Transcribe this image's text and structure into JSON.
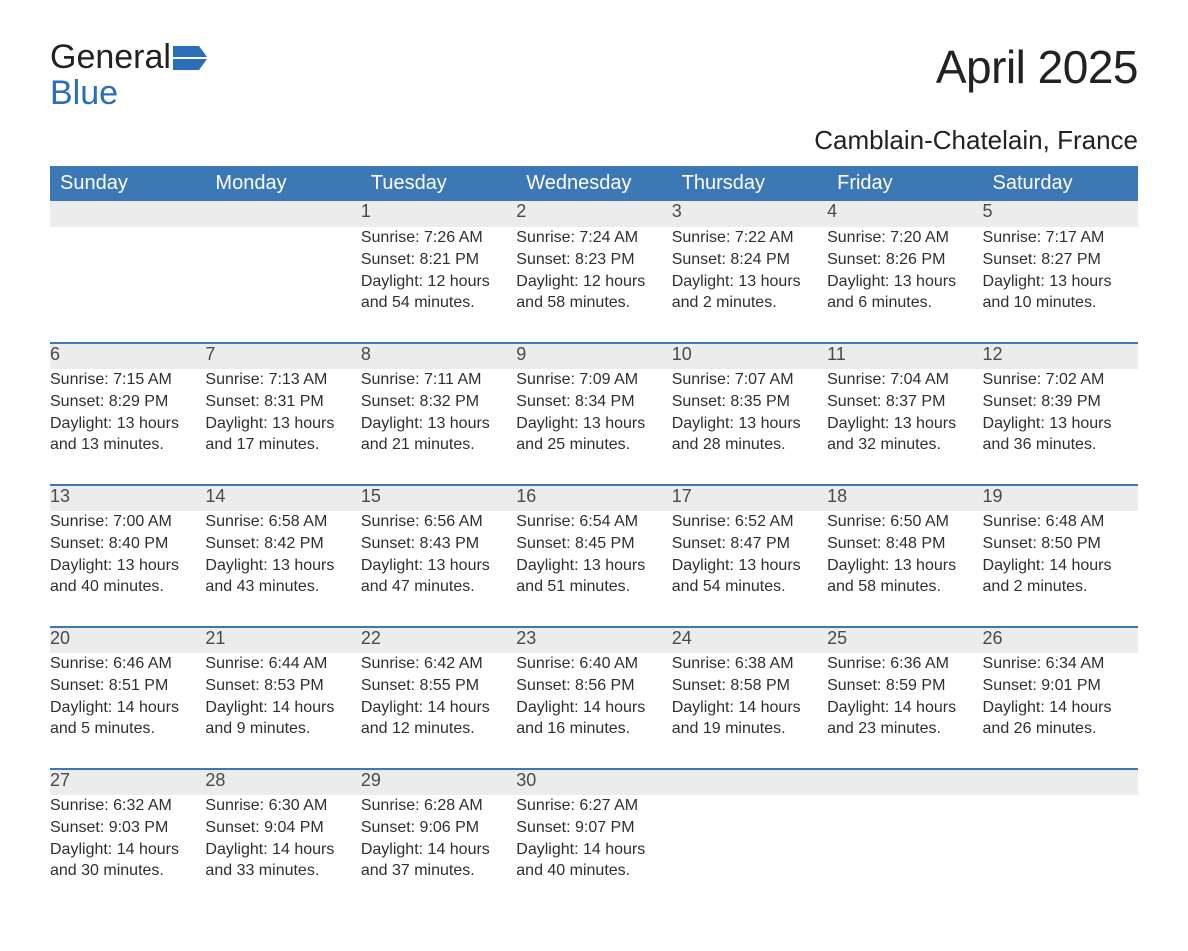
{
  "logo": {
    "word1": "General",
    "word2": "Blue",
    "flag_color": "#2a6db8"
  },
  "title": "April 2025",
  "location": "Camblain-Chatelain, France",
  "colors": {
    "header_bg": "#3c78b5",
    "header_text": "#ffffff",
    "daynum_bg": "#ececec",
    "daynum_text": "#4a4a4a",
    "body_text": "#2f2f2f",
    "rule": "#3c78b5"
  },
  "typography": {
    "title_fontsize": 46,
    "location_fontsize": 26,
    "header_fontsize": 20,
    "daynum_fontsize": 18,
    "cell_fontsize": 16
  },
  "calendar": {
    "type": "table",
    "columns": [
      "Sunday",
      "Monday",
      "Tuesday",
      "Wednesday",
      "Thursday",
      "Friday",
      "Saturday"
    ],
    "weeks": [
      [
        null,
        null,
        {
          "day": "1",
          "sunrise": "Sunrise: 7:26 AM",
          "sunset": "Sunset: 8:21 PM",
          "daylight1": "Daylight: 12 hours",
          "daylight2": "and 54 minutes."
        },
        {
          "day": "2",
          "sunrise": "Sunrise: 7:24 AM",
          "sunset": "Sunset: 8:23 PM",
          "daylight1": "Daylight: 12 hours",
          "daylight2": "and 58 minutes."
        },
        {
          "day": "3",
          "sunrise": "Sunrise: 7:22 AM",
          "sunset": "Sunset: 8:24 PM",
          "daylight1": "Daylight: 13 hours",
          "daylight2": "and 2 minutes."
        },
        {
          "day": "4",
          "sunrise": "Sunrise: 7:20 AM",
          "sunset": "Sunset: 8:26 PM",
          "daylight1": "Daylight: 13 hours",
          "daylight2": "and 6 minutes."
        },
        {
          "day": "5",
          "sunrise": "Sunrise: 7:17 AM",
          "sunset": "Sunset: 8:27 PM",
          "daylight1": "Daylight: 13 hours",
          "daylight2": "and 10 minutes."
        }
      ],
      [
        {
          "day": "6",
          "sunrise": "Sunrise: 7:15 AM",
          "sunset": "Sunset: 8:29 PM",
          "daylight1": "Daylight: 13 hours",
          "daylight2": "and 13 minutes."
        },
        {
          "day": "7",
          "sunrise": "Sunrise: 7:13 AM",
          "sunset": "Sunset: 8:31 PM",
          "daylight1": "Daylight: 13 hours",
          "daylight2": "and 17 minutes."
        },
        {
          "day": "8",
          "sunrise": "Sunrise: 7:11 AM",
          "sunset": "Sunset: 8:32 PM",
          "daylight1": "Daylight: 13 hours",
          "daylight2": "and 21 minutes."
        },
        {
          "day": "9",
          "sunrise": "Sunrise: 7:09 AM",
          "sunset": "Sunset: 8:34 PM",
          "daylight1": "Daylight: 13 hours",
          "daylight2": "and 25 minutes."
        },
        {
          "day": "10",
          "sunrise": "Sunrise: 7:07 AM",
          "sunset": "Sunset: 8:35 PM",
          "daylight1": "Daylight: 13 hours",
          "daylight2": "and 28 minutes."
        },
        {
          "day": "11",
          "sunrise": "Sunrise: 7:04 AM",
          "sunset": "Sunset: 8:37 PM",
          "daylight1": "Daylight: 13 hours",
          "daylight2": "and 32 minutes."
        },
        {
          "day": "12",
          "sunrise": "Sunrise: 7:02 AM",
          "sunset": "Sunset: 8:39 PM",
          "daylight1": "Daylight: 13 hours",
          "daylight2": "and 36 minutes."
        }
      ],
      [
        {
          "day": "13",
          "sunrise": "Sunrise: 7:00 AM",
          "sunset": "Sunset: 8:40 PM",
          "daylight1": "Daylight: 13 hours",
          "daylight2": "and 40 minutes."
        },
        {
          "day": "14",
          "sunrise": "Sunrise: 6:58 AM",
          "sunset": "Sunset: 8:42 PM",
          "daylight1": "Daylight: 13 hours",
          "daylight2": "and 43 minutes."
        },
        {
          "day": "15",
          "sunrise": "Sunrise: 6:56 AM",
          "sunset": "Sunset: 8:43 PM",
          "daylight1": "Daylight: 13 hours",
          "daylight2": "and 47 minutes."
        },
        {
          "day": "16",
          "sunrise": "Sunrise: 6:54 AM",
          "sunset": "Sunset: 8:45 PM",
          "daylight1": "Daylight: 13 hours",
          "daylight2": "and 51 minutes."
        },
        {
          "day": "17",
          "sunrise": "Sunrise: 6:52 AM",
          "sunset": "Sunset: 8:47 PM",
          "daylight1": "Daylight: 13 hours",
          "daylight2": "and 54 minutes."
        },
        {
          "day": "18",
          "sunrise": "Sunrise: 6:50 AM",
          "sunset": "Sunset: 8:48 PM",
          "daylight1": "Daylight: 13 hours",
          "daylight2": "and 58 minutes."
        },
        {
          "day": "19",
          "sunrise": "Sunrise: 6:48 AM",
          "sunset": "Sunset: 8:50 PM",
          "daylight1": "Daylight: 14 hours",
          "daylight2": "and 2 minutes."
        }
      ],
      [
        {
          "day": "20",
          "sunrise": "Sunrise: 6:46 AM",
          "sunset": "Sunset: 8:51 PM",
          "daylight1": "Daylight: 14 hours",
          "daylight2": "and 5 minutes."
        },
        {
          "day": "21",
          "sunrise": "Sunrise: 6:44 AM",
          "sunset": "Sunset: 8:53 PM",
          "daylight1": "Daylight: 14 hours",
          "daylight2": "and 9 minutes."
        },
        {
          "day": "22",
          "sunrise": "Sunrise: 6:42 AM",
          "sunset": "Sunset: 8:55 PM",
          "daylight1": "Daylight: 14 hours",
          "daylight2": "and 12 minutes."
        },
        {
          "day": "23",
          "sunrise": "Sunrise: 6:40 AM",
          "sunset": "Sunset: 8:56 PM",
          "daylight1": "Daylight: 14 hours",
          "daylight2": "and 16 minutes."
        },
        {
          "day": "24",
          "sunrise": "Sunrise: 6:38 AM",
          "sunset": "Sunset: 8:58 PM",
          "daylight1": "Daylight: 14 hours",
          "daylight2": "and 19 minutes."
        },
        {
          "day": "25",
          "sunrise": "Sunrise: 6:36 AM",
          "sunset": "Sunset: 8:59 PM",
          "daylight1": "Daylight: 14 hours",
          "daylight2": "and 23 minutes."
        },
        {
          "day": "26",
          "sunrise": "Sunrise: 6:34 AM",
          "sunset": "Sunset: 9:01 PM",
          "daylight1": "Daylight: 14 hours",
          "daylight2": "and 26 minutes."
        }
      ],
      [
        {
          "day": "27",
          "sunrise": "Sunrise: 6:32 AM",
          "sunset": "Sunset: 9:03 PM",
          "daylight1": "Daylight: 14 hours",
          "daylight2": "and 30 minutes."
        },
        {
          "day": "28",
          "sunrise": "Sunrise: 6:30 AM",
          "sunset": "Sunset: 9:04 PM",
          "daylight1": "Daylight: 14 hours",
          "daylight2": "and 33 minutes."
        },
        {
          "day": "29",
          "sunrise": "Sunrise: 6:28 AM",
          "sunset": "Sunset: 9:06 PM",
          "daylight1": "Daylight: 14 hours",
          "daylight2": "and 37 minutes."
        },
        {
          "day": "30",
          "sunrise": "Sunrise: 6:27 AM",
          "sunset": "Sunset: 9:07 PM",
          "daylight1": "Daylight: 14 hours",
          "daylight2": "and 40 minutes."
        },
        null,
        null,
        null
      ]
    ]
  }
}
